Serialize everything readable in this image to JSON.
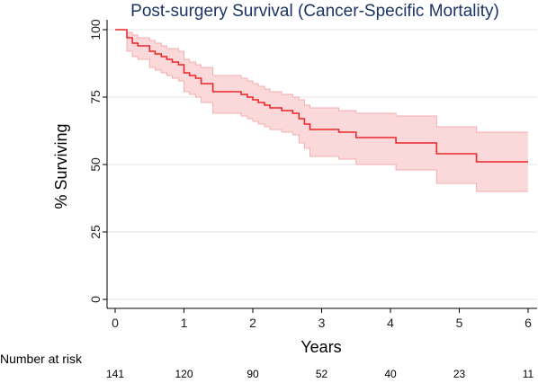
{
  "chart_data": {
    "type": "line",
    "title": "Post-surgery Survival (Cancer-Specific Mortality)",
    "xlabel": "Years",
    "ylabel": "% Surviving",
    "xlim": [
      0,
      6
    ],
    "ylim": [
      0,
      100
    ],
    "x_ticks": [
      "0",
      "1",
      "2",
      "3",
      "4",
      "5",
      "6"
    ],
    "y_ticks": [
      "0",
      "25",
      "50",
      "75",
      "100"
    ],
    "grid": "horizontal",
    "colors": {
      "line": "#e8282d",
      "ci_fill": "#fbd9da",
      "ci_edge": "#f3aeb1",
      "grid": "#e6e6e6",
      "title": "#1b3463"
    },
    "series": [
      {
        "style": "step",
        "x": [
          0,
          0.17,
          0.25,
          0.33,
          0.5,
          0.58,
          0.67,
          0.75,
          0.83,
          0.92,
          1.0,
          1.08,
          1.17,
          1.25,
          1.42,
          1.83,
          1.92,
          2.0,
          2.08,
          2.17,
          2.25,
          2.42,
          2.58,
          2.67,
          2.75,
          2.83,
          3.25,
          3.5,
          4.08,
          4.67,
          5.25,
          6.0
        ],
        "y": [
          100,
          97,
          95,
          94,
          92,
          91,
          90,
          89,
          88,
          87,
          84,
          83,
          82,
          80,
          77,
          76,
          75,
          74,
          73,
          72,
          71,
          70,
          69,
          67,
          65,
          63,
          62,
          60,
          58,
          54,
          51,
          51
        ],
        "ci_lower": [
          100,
          92,
          90,
          89,
          86,
          85,
          84,
          83,
          82,
          81,
          77,
          76,
          75,
          73,
          69,
          68,
          67,
          66,
          65,
          64,
          63,
          62,
          61,
          58,
          56,
          53,
          52,
          50,
          48,
          43,
          40,
          40
        ],
        "ci_upper": [
          100,
          99,
          98,
          97,
          96,
          95,
          94,
          93,
          93,
          92,
          89,
          88,
          87,
          86,
          83,
          82,
          81,
          80,
          79,
          78,
          77,
          76,
          75,
          74,
          72,
          71,
          70,
          69,
          68,
          64,
          62,
          62
        ]
      }
    ],
    "risk_table": {
      "title": "Number at risk",
      "times": [
        0,
        1,
        2,
        3,
        4,
        5,
        6
      ],
      "counts": [
        "141",
        "120",
        "90",
        "52",
        "40",
        "23",
        "11"
      ]
    }
  }
}
